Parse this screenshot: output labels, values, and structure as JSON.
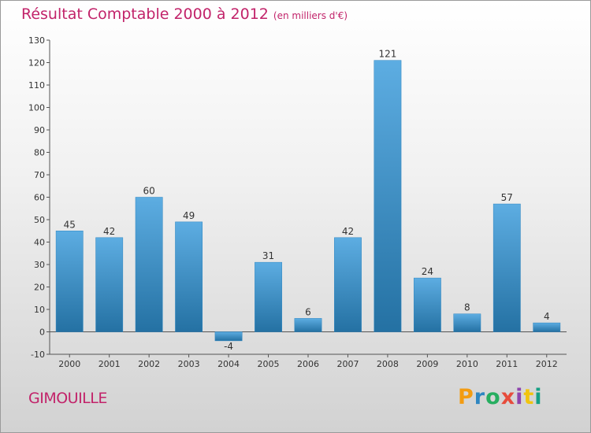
{
  "chart_data": {
    "type": "bar",
    "title": "Résultat Comptable 2000 à 2012",
    "subtitle": "(en milliers d'€)",
    "categories": [
      "2000",
      "2001",
      "2002",
      "2003",
      "2004",
      "2005",
      "2006",
      "2007",
      "2008",
      "2009",
      "2010",
      "2011",
      "2012"
    ],
    "values": [
      45,
      42,
      60,
      49,
      -4,
      31,
      6,
      42,
      121,
      24,
      8,
      57,
      4
    ],
    "ylim": [
      -10,
      130
    ],
    "yticks": [
      -10,
      0,
      10,
      20,
      30,
      40,
      50,
      60,
      70,
      80,
      90,
      100,
      110,
      120,
      130
    ],
    "xlabel": "",
    "ylabel": "",
    "grid": false
  },
  "footer": {
    "commune": "GIMOUILLE",
    "logo_letters": [
      {
        "char": "P",
        "color": "#f39c12"
      },
      {
        "char": "r",
        "color": "#2e86c1"
      },
      {
        "char": "o",
        "color": "#27ae60"
      },
      {
        "char": "x",
        "color": "#e74c3c"
      },
      {
        "char": "i",
        "color": "#8e44ad"
      },
      {
        "char": "t",
        "color": "#f1c40f"
      },
      {
        "char": "i",
        "color": "#16a085"
      }
    ]
  },
  "colors": {
    "title": "#c2236a",
    "bar_light": "#5dade2",
    "bar_dark": "#2471a3",
    "axis": "#555555"
  }
}
